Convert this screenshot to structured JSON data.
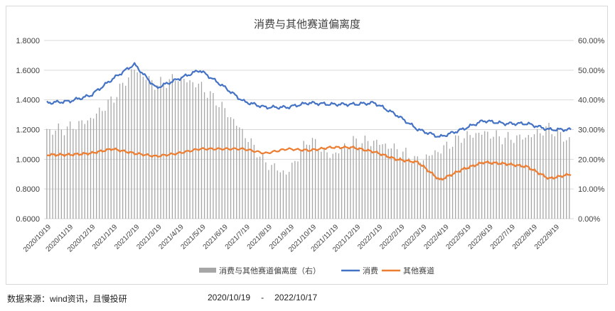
{
  "chart_data": {
    "type": "bar+line",
    "title": "消费与其他赛道偏离度",
    "left_axis": {
      "min": 0.6,
      "max": 1.8,
      "ticks": [
        "0.6000",
        "0.8000",
        "1.0000",
        "1.2000",
        "1.4000",
        "1.6000",
        "1.8000"
      ]
    },
    "right_axis": {
      "min": 0,
      "max": 60,
      "ticks": [
        "0.00%",
        "10.00%",
        "20.00%",
        "30.00%",
        "40.00%",
        "50.00%",
        "60.00%"
      ]
    },
    "x_labels": [
      "2020/10/19",
      "2020/11/19",
      "2020/12/19",
      "2021/1/19",
      "2021/2/19",
      "2021/3/19",
      "2021/4/19",
      "2021/5/19",
      "2021/6/19",
      "2021/7/19",
      "2021/8/19",
      "2021/9/19",
      "2021/10/19",
      "2021/11/19",
      "2021/12/19",
      "2022/1/19",
      "2022/2/19",
      "2022/3/19",
      "2022/4/19",
      "2022/5/19",
      "2022/6/19",
      "2022/7/19",
      "2022/8/19",
      "2022/9/19"
    ],
    "series": [
      {
        "name": "消费与其他赛道偏离度（右）",
        "type": "bar",
        "axis": "right",
        "color": "#a6a6a6",
        "monthly_values": [
          29.5,
          30.5,
          33.5,
          40.0,
          50.5,
          45.0,
          47.5,
          45.0,
          38.0,
          29.0,
          19.0,
          15.0,
          27.0,
          21.0,
          26.0,
          26.0,
          23.5,
          19.5,
          23.0,
          27.5,
          29.0,
          27.0,
          27.5,
          30.5,
          26.0
        ]
      },
      {
        "name": "消费",
        "type": "line",
        "axis": "left",
        "color": "#4472c4",
        "monthly_values": [
          1.38,
          1.39,
          1.43,
          1.54,
          1.64,
          1.48,
          1.54,
          1.6,
          1.5,
          1.39,
          1.35,
          1.35,
          1.38,
          1.37,
          1.37,
          1.38,
          1.3,
          1.2,
          1.15,
          1.2,
          1.26,
          1.24,
          1.24,
          1.2,
          1.2
        ]
      },
      {
        "name": "其他赛道",
        "type": "line",
        "axis": "left",
        "color": "#ed7d31",
        "monthly_values": [
          1.03,
          1.03,
          1.04,
          1.07,
          1.04,
          1.02,
          1.04,
          1.07,
          1.07,
          1.07,
          1.04,
          1.07,
          1.06,
          1.08,
          1.08,
          1.05,
          1.0,
          0.98,
          0.86,
          0.93,
          0.98,
          0.97,
          0.95,
          0.87,
          0.9
        ]
      }
    ],
    "legend_position": "bottom"
  },
  "footer": {
    "source": "数据来源：wind资讯，且慢投研",
    "range_start": "2020/10/19",
    "range_sep": "-",
    "range_end": "2022/10/17"
  }
}
